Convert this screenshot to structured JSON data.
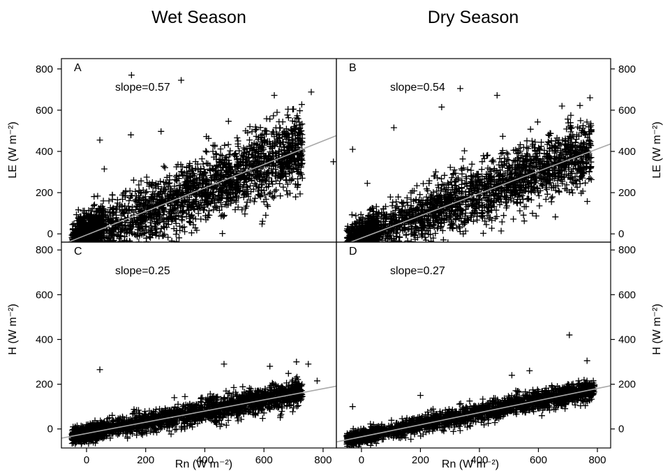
{
  "column_titles": [
    "Wet Season",
    "Dry Season"
  ],
  "shared": {
    "xlabel": "Rn (W m⁻²)",
    "ylabel_top": "LE (W m⁻²)",
    "ylabel_bottom": "H (W m⁻²)",
    "x_ticks": [
      0,
      200,
      400,
      600,
      800
    ],
    "y_ticks": [
      0,
      200,
      400,
      600,
      800
    ],
    "xlim": [
      -85,
      845
    ],
    "ylim_top": [
      -40,
      850
    ],
    "ylim_bottom": [
      -85,
      835
    ]
  },
  "chart_data": [
    {
      "type": "scatter",
      "panel": "A",
      "season": "Wet Season",
      "variable": "LE",
      "slope_label": "slope=0.57",
      "fit_slope": 0.57,
      "fit_intercept": -5,
      "point_cloud_y_spread": 85,
      "x_range": [
        -50,
        730
      ],
      "ylim": [
        -40,
        850
      ],
      "outliers": [
        [
          152,
          770
        ],
        [
          320,
          745
        ],
        [
          635,
          672
        ],
        [
          760,
          688
        ],
        [
          700,
          605
        ],
        [
          835,
          350
        ],
        [
          45,
          455
        ],
        [
          150,
          480
        ],
        [
          252,
          497
        ],
        [
          60,
          315
        ],
        [
          730,
          270
        ]
      ]
    },
    {
      "type": "scatter",
      "panel": "B",
      "season": "Dry Season",
      "variable": "LE",
      "slope_label": "slope=0.54",
      "fit_slope": 0.54,
      "fit_intercept": -20,
      "point_cloud_y_spread": 75,
      "x_range": [
        -50,
        780
      ],
      "ylim": [
        -40,
        850
      ],
      "outliers": [
        [
          335,
          705
        ],
        [
          460,
          672
        ],
        [
          272,
          615
        ],
        [
          110,
          515
        ],
        [
          680,
          620
        ],
        [
          775,
          660
        ],
        [
          710,
          575
        ],
        [
          -30,
          410
        ],
        [
          20,
          245
        ]
      ]
    },
    {
      "type": "scatter",
      "panel": "C",
      "season": "Wet Season",
      "variable": "H",
      "slope_label": "slope=0.25",
      "fit_slope": 0.25,
      "fit_intercept": -20,
      "point_cloud_y_spread": 28,
      "x_range": [
        -50,
        730
      ],
      "ylim": [
        -85,
        835
      ],
      "outliers": [
        [
          45,
          265
        ],
        [
          710,
          300
        ],
        [
          750,
          290
        ],
        [
          780,
          215
        ],
        [
          620,
          280
        ],
        [
          465,
          290
        ]
      ]
    },
    {
      "type": "scatter",
      "panel": "D",
      "season": "Dry Season",
      "variable": "H",
      "slope_label": "slope=0.27",
      "fit_slope": 0.27,
      "fit_intercept": -35,
      "point_cloud_y_spread": 22,
      "x_range": [
        -50,
        790
      ],
      "ylim": [
        -85,
        835
      ],
      "outliers": [
        [
          705,
          420
        ],
        [
          765,
          305
        ],
        [
          510,
          240
        ],
        [
          570,
          260
        ],
        [
          200,
          150
        ],
        [
          -30,
          100
        ]
      ]
    }
  ]
}
